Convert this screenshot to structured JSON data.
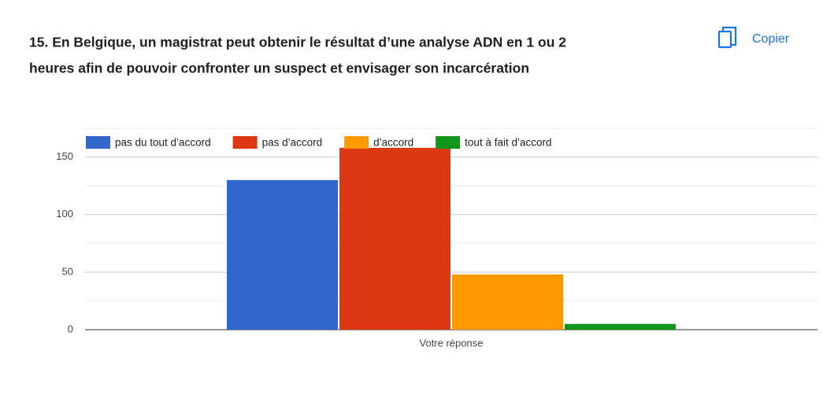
{
  "header": {
    "title_lines": [
      "15. En Belgique, un magistrat peut obtenir le résultat d’une analyse ADN en 1 ou 2",
      "heures afin de pouvoir confronter un suspect et envisager son incarcération"
    ],
    "copy_button": "Copier"
  },
  "chart_data": {
    "type": "bar",
    "categories": [
      "Votre réponse"
    ],
    "series": [
      {
        "name": "pas du tout d’accord",
        "color": "#3366cc",
        "values": [
          130
        ]
      },
      {
        "name": "pas d’accord",
        "color": "#dc3912",
        "values": [
          158
        ]
      },
      {
        "name": "d’accord",
        "color": "#ff9900",
        "values": [
          48
        ]
      },
      {
        "name": "tout à fait d’accord",
        "color": "#109618",
        "values": [
          5
        ]
      }
    ],
    "ylim": [
      0,
      175
    ],
    "yticks": [
      0,
      50,
      100,
      150
    ],
    "minor_yticks": [
      25,
      75,
      125,
      175
    ],
    "grid": true,
    "legend": "top"
  }
}
